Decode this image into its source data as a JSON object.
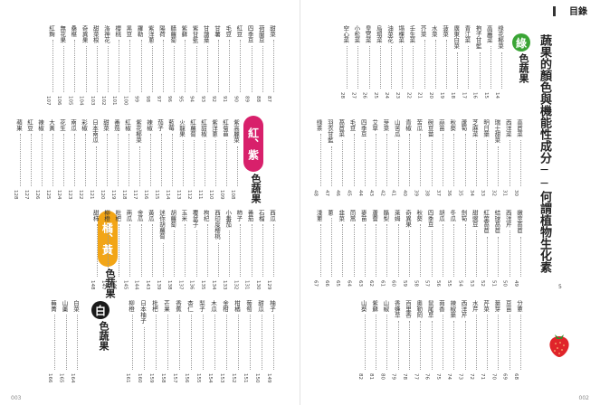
{
  "header": {
    "title": "目錄"
  },
  "subtitle": "蔬果的顏色與機能性成分──何謂植物生化素",
  "subtitle_page": "5",
  "folio_left": "003",
  "folio_right": "002",
  "categories": {
    "green": {
      "badge": "綠",
      "label": "色蔬果",
      "color": "#3aa535"
    },
    "red": {
      "badge": "紅、紫",
      "label": "色蔬果",
      "color": "#d8206b"
    },
    "yellow": {
      "badge": "橘、黃",
      "label": "色蔬果",
      "color": "#f2a516"
    },
    "white": {
      "badge": "白",
      "label": "色蔬果",
      "color": "#1a1a1a"
    }
  },
  "right_page": {
    "row1": [
      {
        "name": "綠花椰菜",
        "page": "14"
      },
      {
        "name": "高麗菜",
        "page": "15"
      },
      {
        "name": "抱子甘藍",
        "page": "16"
      },
      {
        "name": "青江菜",
        "page": "17"
      },
      {
        "name": "廣東白菜",
        "page": "18"
      },
      {
        "name": "菠菜",
        "page": "19"
      },
      {
        "name": "水菜",
        "page": "20"
      },
      {
        "name": "芥菜",
        "page": "21"
      },
      {
        "name": "壬生菜",
        "page": "22"
      },
      {
        "name": "塌棵菜",
        "page": "23"
      },
      {
        "name": "油菜花",
        "page": "24"
      },
      {
        "name": "烏塌菜",
        "page": "25"
      },
      {
        "name": "皇宮菜",
        "page": "26"
      },
      {
        "name": "小松菜",
        "page": "27"
      },
      {
        "name": "空心菜",
        "page": "28"
      }
    ],
    "row2": [
      {
        "name": "高苣菜",
        "page": "30"
      },
      {
        "name": "西洋菜",
        "page": "31"
      },
      {
        "name": "瑞士甜菜",
        "page": "32"
      },
      {
        "name": "明日葉",
        "page": "33"
      },
      {
        "name": "芝麻菜",
        "page": "34"
      },
      {
        "name": "蘆筍",
        "page": "35"
      },
      {
        "name": "秋葵",
        "page": "36"
      },
      {
        "name": "蒜苗",
        "page": "37"
      },
      {
        "name": "碗豆苗",
        "page": "38"
      },
      {
        "name": "苦瓜",
        "page": "39"
      },
      {
        "name": "青椒",
        "page": "40"
      },
      {
        "name": "山苦瓜",
        "page": "41"
      },
      {
        "name": "芽菜",
        "page": "42"
      },
      {
        "name": "艾草",
        "page": "43"
      },
      {
        "name": "四季豆",
        "page": "44"
      },
      {
        "name": "毛豆",
        "page": "45"
      },
      {
        "name": "萵苣菜",
        "page": "46"
      },
      {
        "name": "羽衣甘藍",
        "page": "47"
      },
      {
        "name": "綠茶",
        "page": "48"
      }
    ],
    "row3": [
      {
        "name": "嫩莖萵苣",
        "page": "49"
      },
      {
        "name": "西洋芹",
        "page": "50"
      },
      {
        "name": "結球萵苣",
        "page": "51"
      },
      {
        "name": "紅葉萵苣",
        "page": "52"
      },
      {
        "name": "甜豌豆",
        "page": "53"
      },
      {
        "name": "劍筍",
        "page": "54"
      },
      {
        "name": "冬瓜",
        "page": "55"
      },
      {
        "name": "胡瓜",
        "page": "56"
      },
      {
        "name": "四季豆",
        "page": "57"
      },
      {
        "name": "秋葵",
        "page": "58"
      },
      {
        "name": "奇異果",
        "page": "59"
      },
      {
        "name": "萊姆",
        "page": "60"
      },
      {
        "name": "酪梨",
        "page": "61"
      },
      {
        "name": "蘆薈",
        "page": "62"
      },
      {
        "name": "麥苗",
        "page": "63"
      },
      {
        "name": "茼蒿",
        "page": "64"
      },
      {
        "name": "韭菜",
        "page": "65"
      },
      {
        "name": "蔥",
        "page": "66"
      },
      {
        "name": "淺蔥",
        "page": "67"
      }
    ],
    "row4": [
      {
        "name": "分蔥",
        "page": "68"
      },
      {
        "name": "豆苗",
        "page": "69"
      },
      {
        "name": "葉芽",
        "page": "70"
      },
      {
        "name": "芹菜",
        "page": "71"
      },
      {
        "name": "水芹",
        "page": "72"
      },
      {
        "name": "西洋芹",
        "page": "73"
      },
      {
        "name": "辣椒葉",
        "page": "74"
      },
      {
        "name": "茴香",
        "page": "75"
      },
      {
        "name": "鼠尾草",
        "page": "76"
      },
      {
        "name": "奧勒岡",
        "page": "77"
      },
      {
        "name": "百里香",
        "page": "78"
      },
      {
        "name": "香蜂草",
        "page": "79"
      },
      {
        "name": "山椒",
        "page": "80"
      },
      {
        "name": "紫蘇",
        "page": "81"
      },
      {
        "name": "山葵",
        "page": "82"
      }
    ]
  },
  "left_page": {
    "row1": [
      {
        "name": "甜菜",
        "page": "87"
      },
      {
        "name": "荷蘭豆",
        "page": "88"
      },
      {
        "name": "四季豆",
        "page": "89"
      },
      {
        "name": "紅豆",
        "page": "90"
      },
      {
        "name": "毛豆",
        "page": "91"
      },
      {
        "name": "甘薯",
        "page": "92"
      },
      {
        "name": "甘藷葉",
        "page": "93"
      },
      {
        "name": "紫甘藍",
        "page": "94"
      },
      {
        "name": "紫蘇",
        "page": "95"
      },
      {
        "name": "醋蘿蔔",
        "page": "96"
      },
      {
        "name": "陽荷",
        "page": "97"
      },
      {
        "name": "紫洋蔥",
        "page": "98"
      },
      {
        "name": "羅勒",
        "page": "99"
      },
      {
        "name": "黑豆",
        "page": "100"
      },
      {
        "name": "櫻桃",
        "page": "101"
      },
      {
        "name": "洛神花",
        "page": "102"
      },
      {
        "name": "甜菜根",
        "page": "103"
      },
      {
        "name": "奇異果",
        "page": "104"
      },
      {
        "name": "桑椹",
        "page": "105"
      },
      {
        "name": "無花果",
        "page": "106"
      },
      {
        "name": "紅麴",
        "page": "107"
      }
    ],
    "row2": [
      {
        "name": "紫高麗菜",
        "page": "108"
      },
      {
        "name": "紅菊苣",
        "page": "109"
      },
      {
        "name": "紫洋蔥",
        "page": "110"
      },
      {
        "name": "紅甜椒",
        "page": "111"
      },
      {
        "name": "紅蘿蔔",
        "page": "112"
      },
      {
        "name": "火龍果",
        "page": "113"
      },
      {
        "name": "藍莓",
        "page": "114"
      },
      {
        "name": "茄子",
        "page": "115"
      },
      {
        "name": "辣椒",
        "page": "116"
      },
      {
        "name": "紫花椰菜",
        "page": "117"
      },
      {
        "name": "紅椒",
        "page": "118"
      },
      {
        "name": "番茄",
        "page": "119"
      },
      {
        "name": "甜菜",
        "page": "120"
      },
      {
        "name": "日本南瓜",
        "page": "121"
      },
      {
        "name": "彩椒",
        "page": "122"
      },
      {
        "name": "南瓜",
        "page": "123"
      },
      {
        "name": "花生",
        "page": "124"
      },
      {
        "name": "大黃",
        "page": "125"
      },
      {
        "name": "辣椒",
        "page": "126"
      },
      {
        "name": "紅豆",
        "page": "127"
      },
      {
        "name": "蘋果",
        "page": "128"
      }
    ],
    "row3": [
      {
        "name": "西瓜",
        "page": "129"
      },
      {
        "name": "石榴",
        "page": "130"
      },
      {
        "name": "番茄",
        "page": "131"
      },
      {
        "name": "柿子",
        "page": "132"
      },
      {
        "name": "小番茄",
        "page": "133"
      },
      {
        "name": "西印度櫻桃",
        "page": "134"
      },
      {
        "name": "枸杞",
        "page": "135"
      },
      {
        "name": "覆盆子",
        "page": "136"
      },
      {
        "name": "玉米",
        "page": "137"
      },
      {
        "name": "胡蘿蔔",
        "page": "138"
      },
      {
        "name": "迷你胡蘿蔔",
        "page": "139"
      },
      {
        "name": "黃瓜",
        "page": "143"
      },
      {
        "name": "金瓜",
        "page": "144"
      },
      {
        "name": "南瓜",
        "page": "145"
      },
      {
        "name": "枇杷",
        "page": "146"
      },
      {
        "name": "柳橙",
        "page": "147"
      },
      {
        "name": "甜柿",
        "page": "148"
      }
    ],
    "row4": [
      {
        "name": "柚子",
        "page": "149"
      },
      {
        "name": "甜瓜",
        "page": "150"
      },
      {
        "name": "葡萄",
        "page": "151"
      },
      {
        "name": "柑橘",
        "page": "152"
      },
      {
        "name": "金柑",
        "page": "153"
      },
      {
        "name": "木瓜",
        "page": "154"
      },
      {
        "name": "梨子",
        "page": "155"
      },
      {
        "name": "杏仁",
        "page": "156"
      },
      {
        "name": "香蕉",
        "page": "157"
      },
      {
        "name": "芒果",
        "page": "158"
      },
      {
        "name": "枇杷",
        "page": "159"
      },
      {
        "name": "日本柚子",
        "page": "160"
      },
      {
        "name": "柳橙",
        "page": "161"
      }
    ],
    "row5": [
      {
        "name": "白菜",
        "page": "164"
      },
      {
        "name": "山藥",
        "page": "165"
      },
      {
        "name": "蕪菁",
        "page": "166"
      }
    ],
    "row5_extra": [
      {
        "name": "山藥芽",
        "page": "163"
      },
      {
        "name": "銀耳",
        "page": "162"
      }
    ]
  }
}
